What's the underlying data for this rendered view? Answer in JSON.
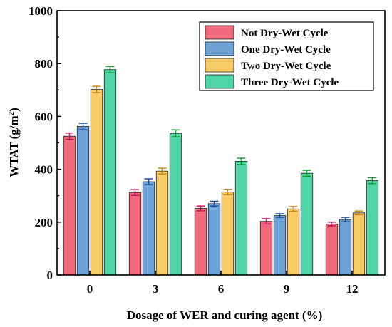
{
  "chart_data": {
    "type": "bar",
    "xlabel": "Dosage of WER and curing agent (%)",
    "ylabel": "WTAT  (g/m²)",
    "ylabel_base": "WTAT  (g/m",
    "ylabel_sup": "2",
    "ylabel_end": ")",
    "ylim": [
      0,
      1000
    ],
    "yticks": [
      "0",
      "200",
      "400",
      "600",
      "800",
      "1000"
    ],
    "categories": [
      "0",
      "3",
      "6",
      "9",
      "12"
    ],
    "legend_position": "top-right",
    "grid": false,
    "series": [
      {
        "name": "Not Dry-Wet Cycle",
        "values": [
          525,
          312,
          252,
          203,
          193
        ],
        "errors": [
          12,
          11,
          9,
          10,
          7
        ],
        "color": "#f06b7c",
        "edge": "#c2185b"
      },
      {
        "name": "One Dry-Wet Cycle",
        "values": [
          562,
          353,
          270,
          225,
          210
        ],
        "errors": [
          12,
          11,
          9,
          7,
          8
        ],
        "color": "#6fa3d8",
        "edge": "#1f4e96"
      },
      {
        "name": "Two Dry-Wet Cycle",
        "values": [
          702,
          393,
          314,
          250,
          235
        ],
        "errors": [
          12,
          11,
          10,
          9,
          7
        ],
        "color": "#f7cc66",
        "edge": "#c08a1a"
      },
      {
        "name": "Three Dry-Wet Cycle",
        "values": [
          777,
          536,
          430,
          385,
          357
        ],
        "errors": [
          12,
          13,
          12,
          11,
          11
        ],
        "color": "#4fd5a6",
        "edge": "#1b9e3a"
      }
    ]
  }
}
